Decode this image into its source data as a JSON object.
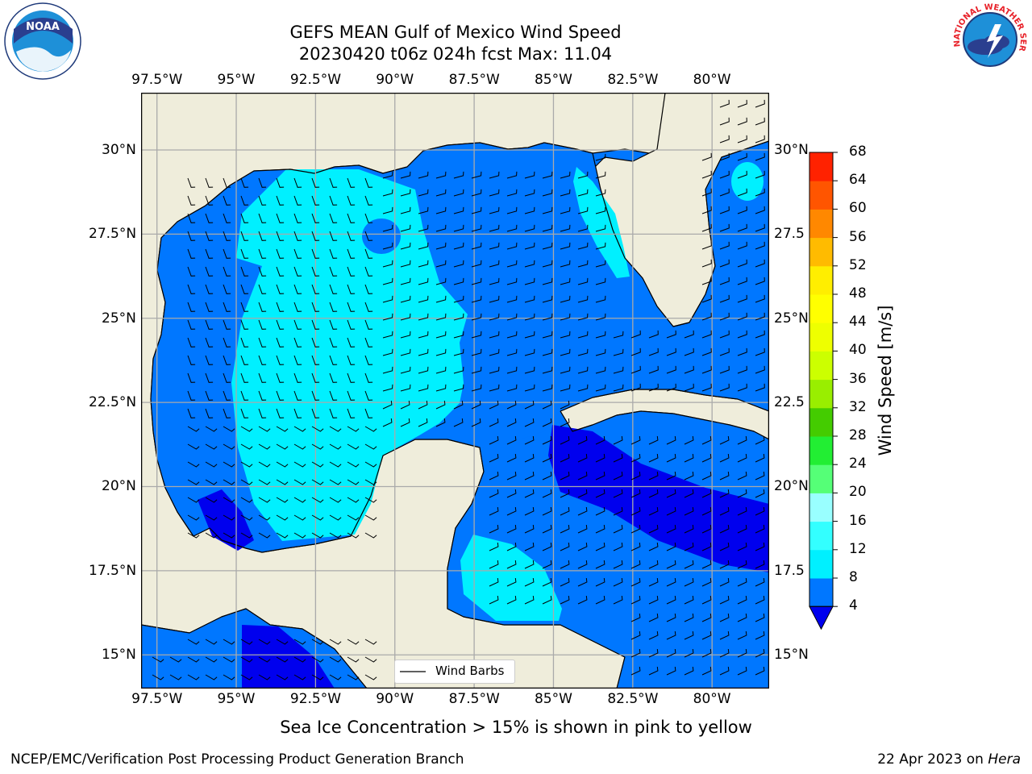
{
  "title": {
    "line1": "GEFS MEAN Gulf of Mexico Wind Speed",
    "line2": "20230420 t06z 024h fcst   Max: 11.04"
  },
  "axes": {
    "lon_labels": [
      "97.5°W",
      "95°W",
      "92.5°W",
      "90°W",
      "87.5°W",
      "85°W",
      "82.5°W",
      "80°W"
    ],
    "lat_labels_left": [
      "30°N",
      "27.5°N",
      "25°N",
      "22.5°N",
      "20°N",
      "17.5°N",
      "15°N"
    ],
    "lat_labels_right": [
      "30°N",
      "27.5",
      "25°N",
      "22.5",
      "20°N",
      "17.5",
      "15°N"
    ],
    "lon_range": [
      -98,
      -78.2
    ],
    "lat_range": [
      14,
      31.7
    ]
  },
  "colorbar": {
    "title": "Wind Speed [m/s]",
    "ticks": [
      "4",
      "8",
      "12",
      "16",
      "20",
      "24",
      "28",
      "32",
      "36",
      "40",
      "44",
      "48",
      "52",
      "56",
      "60",
      "64",
      "68"
    ],
    "colors": [
      "#0077ff",
      "#00f0ff",
      "#33ffff",
      "#99ffff",
      "#55ff77",
      "#22ee33",
      "#44cc00",
      "#99ee00",
      "#ccff00",
      "#eeff00",
      "#ffff00",
      "#ffee00",
      "#ffbb00",
      "#ff8800",
      "#ff5500",
      "#ff2200"
    ],
    "under_color": "#0000ee"
  },
  "legend": {
    "label": "Wind Barbs"
  },
  "colors": {
    "land": "#efeddb",
    "band_4_8": "#0077ff",
    "band_8_12": "#00f0ff",
    "band_lt_4": "#0000ee",
    "grid": "#aaaaaa"
  },
  "notes": {
    "ice": "Sea Ice Concentration > 15% is shown in pink to yellow",
    "footer_left": "NCEP/EMC/Verification Post Processing Product Generation Branch",
    "footer_date": "22 Apr 2023 on ",
    "footer_host": "Hera"
  },
  "logos": {
    "noaa_text": "NOAA",
    "nws_text": "NATIONAL WEATHER SERVICE"
  }
}
